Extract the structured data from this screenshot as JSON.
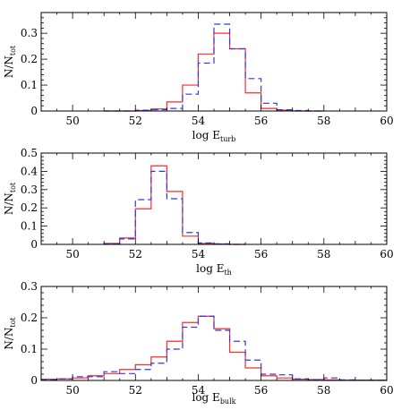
{
  "chart_data": [
    {
      "type": "histogram",
      "xlabel": "log E",
      "xlabel_sub": "turb",
      "ylabel": "N/N",
      "ylabel_sub": "tot",
      "xlim": [
        49,
        60
      ],
      "ylim": [
        0,
        0.38
      ],
      "xticks": [
        50,
        52,
        54,
        56,
        58,
        60
      ],
      "yticks": [
        0,
        0.1,
        0.2,
        0.3
      ],
      "ytick_labels": [
        "0",
        "0.1",
        "0.2",
        "0.3"
      ],
      "bin_edges": [
        51.0,
        51.5,
        52.0,
        52.5,
        53.0,
        53.5,
        54.0,
        54.5,
        55.0,
        55.5,
        56.0,
        56.5,
        57.0,
        57.5,
        58.0
      ],
      "series": [
        {
          "style": "solid",
          "color": "#ff2a2a",
          "values": [
            0,
            0,
            0.002,
            0.008,
            0.035,
            0.1,
            0.22,
            0.3,
            0.24,
            0.07,
            0.01,
            0.003,
            0,
            0
          ]
        },
        {
          "style": "dashed",
          "color": "#2a3be0",
          "values": [
            0,
            0,
            0.003,
            0.005,
            0.01,
            0.065,
            0.185,
            0.335,
            0.24,
            0.125,
            0.03,
            0.005,
            0.002,
            0
          ]
        }
      ]
    },
    {
      "type": "histogram",
      "xlabel": "log E",
      "xlabel_sub": "th",
      "ylabel": "N/N",
      "ylabel_sub": "tot",
      "xlim": [
        49,
        60
      ],
      "ylim": [
        0,
        0.5
      ],
      "xticks": [
        50,
        52,
        54,
        56,
        58,
        60
      ],
      "yticks": [
        0,
        0.1,
        0.2,
        0.3,
        0.4,
        0.5
      ],
      "ytick_labels": [
        "0",
        "0.1",
        "0.2",
        "0.3",
        "0.4",
        "0.5"
      ],
      "bin_edges": [
        51.0,
        51.5,
        52.0,
        52.5,
        53.0,
        53.5,
        54.0,
        54.5,
        55.0,
        55.5
      ],
      "series": [
        {
          "style": "solid",
          "color": "#ff2a2a",
          "values": [
            0.005,
            0.035,
            0.195,
            0.43,
            0.29,
            0.045,
            0.005,
            0.002,
            0
          ]
        },
        {
          "style": "dashed",
          "color": "#2a3be0",
          "values": [
            0.003,
            0.03,
            0.245,
            0.4,
            0.25,
            0.065,
            0.008,
            0.003,
            0
          ]
        }
      ]
    },
    {
      "type": "histogram",
      "xlabel": "log E",
      "xlabel_sub": "bulk",
      "ylabel": "N/N",
      "ylabel_sub": "tot",
      "xlim": [
        49,
        60
      ],
      "ylim": [
        0,
        0.3
      ],
      "xticks": [
        50,
        52,
        54,
        56,
        58,
        60
      ],
      "yticks": [
        0,
        0.1,
        0.2,
        0.3
      ],
      "ytick_labels": [
        "0",
        "0.1",
        "0.2",
        "0.3"
      ],
      "bin_edges": [
        49.0,
        49.5,
        50.0,
        50.5,
        51.0,
        51.5,
        52.0,
        52.5,
        53.0,
        53.5,
        54.0,
        54.5,
        55.0,
        55.5,
        56.0,
        56.5,
        57.0,
        57.5,
        58.0,
        58.5,
        59.0,
        59.5,
        60.0
      ],
      "series": [
        {
          "style": "solid",
          "color": "#ff2a2a",
          "values": [
            0.004,
            0.005,
            0.008,
            0.015,
            0.022,
            0.035,
            0.05,
            0.075,
            0.125,
            0.185,
            0.205,
            0.165,
            0.09,
            0.04,
            0.015,
            0.008,
            0.004,
            0.003,
            0.002,
            0.001,
            0.001,
            0.001
          ]
        },
        {
          "style": "dashed",
          "color": "#2a3be0",
          "values": [
            0.002,
            0.005,
            0.012,
            0.012,
            0.028,
            0.022,
            0.035,
            0.055,
            0.1,
            0.17,
            0.205,
            0.16,
            0.125,
            0.065,
            0.02,
            0.018,
            0.005,
            0.002,
            0.008,
            0.002,
            0.001,
            0.001
          ]
        }
      ]
    }
  ]
}
